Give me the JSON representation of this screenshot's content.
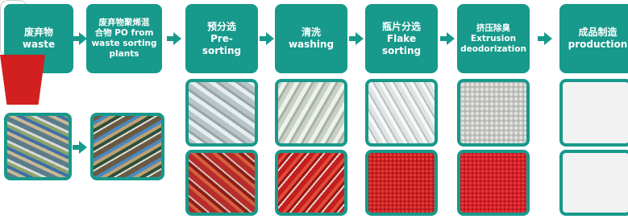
{
  "nodes": [
    {
      "lines": [
        "废弃物",
        "waste"
      ]
    },
    {
      "lines": [
        "废弃物聚烯混",
        "合物 PO from",
        "waste sorting",
        "plants"
      ]
    },
    {
      "lines": [
        "预分选",
        "Pre-",
        "sorting"
      ]
    },
    {
      "lines": [
        "清洗",
        "washing"
      ]
    },
    {
      "lines": [
        "瓶片分选",
        "Flake",
        "sorting"
      ]
    },
    {
      "lines": [
        "挤压除臭",
        "Extrusion",
        "deodorization"
      ]
    },
    {
      "lines": [
        "成品制造",
        "production"
      ]
    }
  ]
}
